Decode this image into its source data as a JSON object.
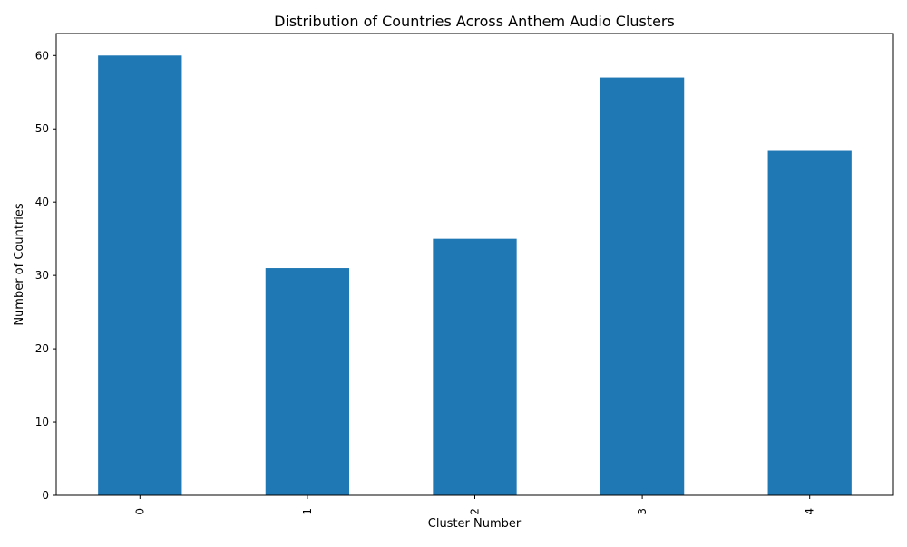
{
  "chart_data": {
    "type": "bar",
    "title": "Distribution of Countries Across Anthem Audio Clusters",
    "xlabel": "Cluster Number",
    "ylabel": "Number of Countries",
    "categories": [
      "0",
      "1",
      "2",
      "3",
      "4"
    ],
    "values": [
      60,
      31,
      35,
      57,
      47
    ],
    "ylim": [
      0,
      63
    ],
    "yticks": [
      0,
      10,
      20,
      30,
      40,
      50,
      60
    ],
    "bar_color": "#1f77b4",
    "grid": false,
    "legend": "none"
  }
}
